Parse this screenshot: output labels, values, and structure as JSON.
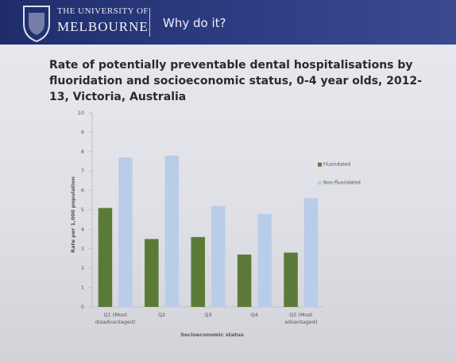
{
  "header": {
    "university_line1": "THE UNIVERSITY OF",
    "university_line2": "MELBOURNE",
    "heading": "Why do it?"
  },
  "chart_data": {
    "type": "bar",
    "title": "Rate of potentially preventable dental hospitalisations by fluoridation and socioeconomic status, 0-4 year olds, 2012-13, Victoria, Australia",
    "x_label": "Socioeconomic status",
    "y_label": "Rate per 1,000 population",
    "categories": [
      "Q1 (Most disadvantaged)",
      "Q2",
      "Q3",
      "Q4",
      "Q5 (Most advantaged)"
    ],
    "series": [
      {
        "name": "Fluoridated",
        "color": "#5b7a37",
        "values": [
          5.1,
          3.5,
          3.6,
          2.7,
          2.8
        ]
      },
      {
        "name": "Non-fluoridated",
        "color": "#b9cde9",
        "values": [
          7.7,
          7.8,
          5.2,
          4.8,
          5.6
        ]
      }
    ],
    "ylim": [
      0,
      10
    ],
    "yticks": [
      0,
      1,
      2,
      3,
      4,
      5,
      6,
      7,
      8,
      9,
      10
    ],
    "grid": false,
    "legend": "right"
  }
}
